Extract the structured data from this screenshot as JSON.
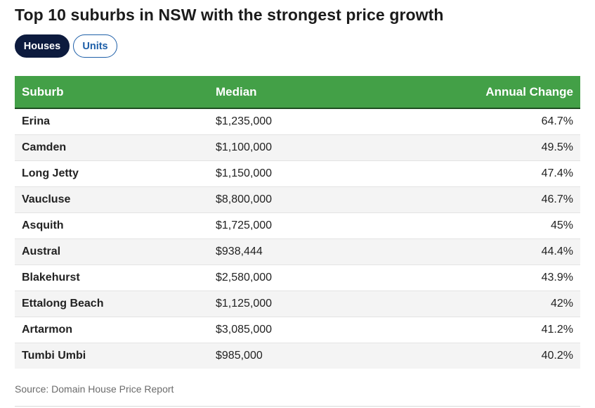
{
  "title": "Top 10 suburbs in NSW with the strongest price growth",
  "toggle": {
    "houses_label": "Houses",
    "units_label": "Units",
    "selected": "Houses"
  },
  "chart_data": {
    "type": "table",
    "title": "Top 10 suburbs in NSW with the strongest price growth",
    "columns": [
      "Suburb",
      "Median",
      "Annual Change"
    ],
    "rows": [
      {
        "suburb": "Erina",
        "median": "$1,235,000",
        "change": "64.7%"
      },
      {
        "suburb": "Camden",
        "median": "$1,100,000",
        "change": "49.5%"
      },
      {
        "suburb": "Long Jetty",
        "median": "$1,150,000",
        "change": "47.4%"
      },
      {
        "suburb": "Vaucluse",
        "median": "$8,800,000",
        "change": "46.7%"
      },
      {
        "suburb": "Asquith",
        "median": "$1,725,000",
        "change": "45%"
      },
      {
        "suburb": "Austral",
        "median": "$938,444",
        "change": "44.4%"
      },
      {
        "suburb": "Blakehurst",
        "median": "$2,580,000",
        "change": "43.9%"
      },
      {
        "suburb": "Ettalong Beach",
        "median": "$1,125,000",
        "change": "42%"
      },
      {
        "suburb": "Artarmon",
        "median": "$3,085,000",
        "change": "41.2%"
      },
      {
        "suburb": "Tumbi Umbi",
        "median": "$985,000",
        "change": "40.2%"
      }
    ],
    "header_color": "#43a047"
  },
  "source": "Source: Domain House Price Report",
  "colors": {
    "header_bg": "#43a047",
    "active_pill": "#0d1b3e",
    "inactive_pill_accent": "#1e5fa8"
  }
}
